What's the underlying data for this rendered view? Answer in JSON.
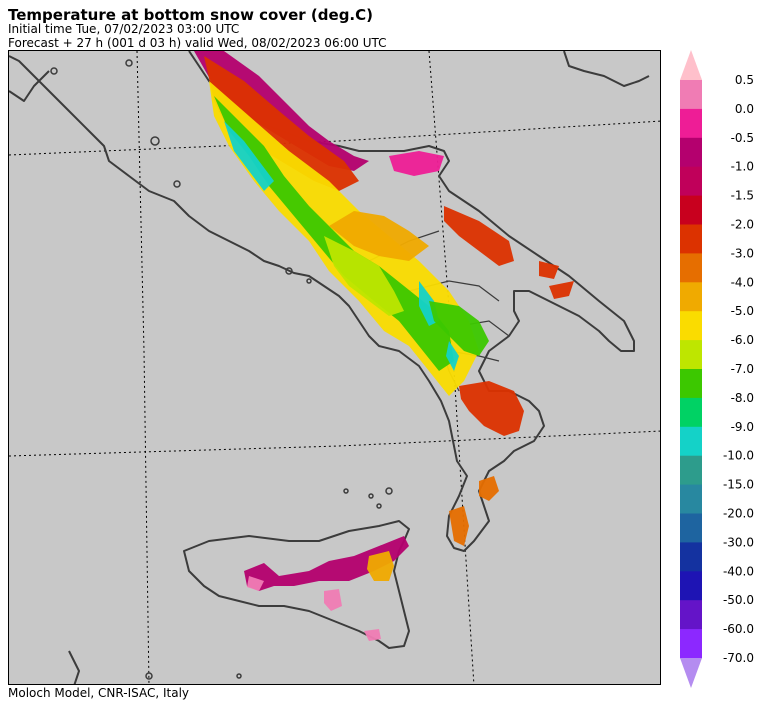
{
  "header": {
    "title": "Temperature at bottom snow cover (deg.C)",
    "initial_time": "Initial time  Tue, 07/02/2023  03:00 UTC",
    "forecast": "Forecast  +  27 h  (001 d 03 h)  valid Wed, 08/02/2023 06:00 UTC"
  },
  "footer": {
    "credit": "Moloch Model, CNR-ISAC, Italy"
  },
  "legend": {
    "labels": [
      "0.5",
      "0.0",
      "-0.5",
      "-1.0",
      "-1.5",
      "-2.0",
      "-3.0",
      "-4.0",
      "-5.0",
      "-6.0",
      "-7.0",
      "-8.0",
      "-9.0",
      "-10.0",
      "-15.0",
      "-20.0",
      "-30.0",
      "-40.0",
      "-50.0",
      "-60.0",
      "-70.0"
    ],
    "colors": [
      "#ffc0cb",
      "#f07cb4",
      "#ee1d96",
      "#b4006e",
      "#c0005a",
      "#c8001e",
      "#dc3200",
      "#e66e00",
      "#f0aa00",
      "#fadc00",
      "#bee600",
      "#3cc800",
      "#00d264",
      "#14d2c8",
      "#2d9c8c",
      "#2888a0",
      "#1e64a0",
      "#1432a0",
      "#1e14b4",
      "#6414c8",
      "#8c28ff",
      "#b48cf0"
    ]
  },
  "map": {
    "background": "#c8c8c8",
    "coast_color": "#3c3c3c",
    "snow_regions": [
      {
        "name": "abruzzo-coast",
        "color": "#b4006e"
      },
      {
        "name": "abruzzo-core",
        "color": "#dc3200"
      },
      {
        "name": "apennine-ridge",
        "color": "#fadc00"
      },
      {
        "name": "apennine-cold",
        "color": "#3cc800"
      },
      {
        "name": "apennine-coldest",
        "color": "#14d2c8"
      },
      {
        "name": "gargano",
        "color": "#ee1d96"
      },
      {
        "name": "molise",
        "color": "#f0aa00"
      },
      {
        "name": "campania-inland",
        "color": "#bee600"
      },
      {
        "name": "basilicata",
        "color": "#3cc800"
      },
      {
        "name": "basilicata-edge",
        "color": "#dc3200"
      },
      {
        "name": "apulia-patch",
        "color": "#dc3200"
      },
      {
        "name": "calabria-sila",
        "color": "#dc3200"
      },
      {
        "name": "calabria-south",
        "color": "#e66e00"
      },
      {
        "name": "sicily-north",
        "color": "#b4006e"
      },
      {
        "name": "sicily-etna",
        "color": "#f0aa00"
      },
      {
        "name": "sicily-pink",
        "color": "#f07cb4"
      }
    ]
  }
}
